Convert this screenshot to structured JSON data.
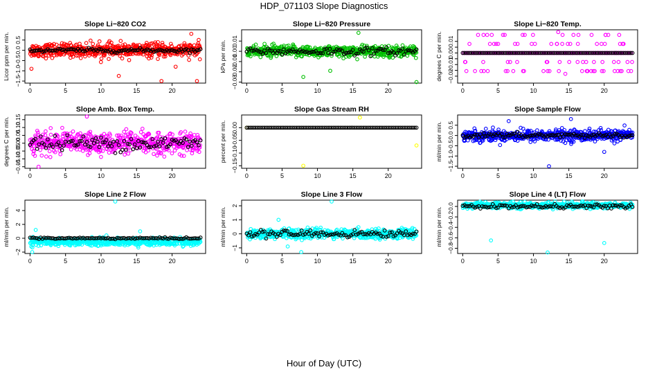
{
  "page_title": "HDP_071103  Slope Diagnostics",
  "x_axis_label": "Hour of Day (UTC)",
  "chart_data": [
    {
      "type": "scatter",
      "title": "Slope Li−820 CO2",
      "ylabel": "Licor ppm per min.",
      "color": "#ff0000",
      "xlim": [
        0,
        24
      ],
      "ylim": [
        -1.6,
        1.0
      ],
      "xticks": [
        0,
        5,
        10,
        15,
        20
      ],
      "yticks": [
        -1.5,
        -1.0,
        -0.5,
        0.0,
        0.5
      ],
      "ytick_labels": [
        "−1.5",
        "−1.0",
        "−0.5",
        "0.0",
        "0.5"
      ],
      "spread": 0.3,
      "center": 0.0,
      "outliers": [
        [
          0.2,
          -0.9
        ],
        [
          12.5,
          -1.25
        ],
        [
          18.5,
          -1.5
        ],
        [
          23.5,
          -1.5
        ],
        [
          22.7,
          0.8
        ],
        [
          20.5,
          -0.8
        ]
      ],
      "black_center": 0.0,
      "black_spread": 0.08
    },
    {
      "type": "scatter",
      "title": "Slope Li−820 Pressure",
      "ylabel": "kPa per min.",
      "color": "#00c000",
      "xlim": [
        0,
        24
      ],
      "ylim": [
        -0.031,
        0.021
      ],
      "xticks": [
        0,
        5,
        10,
        15,
        20
      ],
      "yticks": [
        -0.03,
        -0.02,
        -0.01,
        0.0,
        0.01
      ],
      "ytick_labels": [
        "−0.03",
        "−0.02",
        "−0.01",
        "0.00",
        "0.01"
      ],
      "spread": 0.005,
      "center": 0.0,
      "outliers": [
        [
          8.0,
          -0.025
        ],
        [
          24,
          -0.03
        ],
        [
          15.8,
          0.018
        ],
        [
          11.8,
          -0.019
        ]
      ],
      "black_center": 0.0,
      "black_spread": 0.003
    },
    {
      "type": "scatter",
      "title": "Slope Li−820 Temp.",
      "ylabel": "degrees C per min.",
      "color": "#ff00ff",
      "xlim": [
        0,
        24
      ],
      "ylim": [
        -0.026,
        0.02
      ],
      "xticks": [
        0,
        5,
        10,
        15,
        20
      ],
      "yticks": [
        -0.02,
        -0.01,
        0.0,
        0.01
      ],
      "ytick_labels": [
        "−0.02",
        "−0.01",
        "0.00",
        "0.01"
      ],
      "extra_yticks": [
        -0.015,
        -0.005,
        0.005
      ],
      "levels": [
        -0.0156,
        -0.0078,
        0.0,
        0.0078,
        0.0156
      ],
      "outliers": [
        [
          13.5,
          0.018
        ],
        [
          14.5,
          -0.018
        ]
      ],
      "black_center": 0.0,
      "black_spread": 0.0
    },
    {
      "type": "scatter",
      "title": "Slope Amb. Box Temp.",
      "ylabel": "degrees C per min.",
      "color": "#ff00ff",
      "xlim": [
        0,
        24
      ],
      "ylim": [
        -0.16,
        0.18
      ],
      "xticks": [
        0,
        5,
        10,
        15,
        20
      ],
      "yticks": [
        -0.15,
        -0.1,
        -0.05,
        0.0,
        0.05,
        0.1,
        0.15
      ],
      "ytick_labels": [
        "−0.15",
        "−0.10",
        "−0.05",
        "0.00",
        "0.05",
        "0.10",
        "0.15"
      ],
      "spread": 0.06,
      "center": 0.0,
      "outliers": [
        [
          1.2,
          -0.15
        ],
        [
          8.0,
          0.17
        ]
      ],
      "black_center": 0.0,
      "black_spread": 0.04
    },
    {
      "type": "scatter",
      "title": "Slope Gas Stream RH",
      "ylabel": "percent per min.",
      "color": "#ffff00",
      "xlim": [
        0,
        24
      ],
      "ylim": [
        -0.16,
        0.05
      ],
      "xticks": [
        0,
        5,
        10,
        15,
        20
      ],
      "yticks": [
        -0.15,
        -0.1,
        -0.05,
        0.0
      ],
      "ytick_labels": [
        "−0.15",
        "−0.10",
        "−0.05",
        "0.00"
      ],
      "flat": true,
      "center": 0.0,
      "outliers": [
        [
          16.0,
          0.04
        ],
        [
          24,
          -0.07
        ],
        [
          0.0,
          0.0
        ],
        [
          8.0,
          -0.15
        ]
      ],
      "black_center": 0.0,
      "black_spread": 0.0
    },
    {
      "type": "scatter",
      "title": "Slope Sample Flow",
      "ylabel": "ml/min per min.",
      "color": "#0000ff",
      "xlim": [
        0,
        24
      ],
      "ylim": [
        -1.6,
        1.0
      ],
      "xticks": [
        0,
        5,
        10,
        15,
        20
      ],
      "yticks": [
        -1.5,
        -1.0,
        -0.5,
        0.0,
        0.5
      ],
      "ytick_labels": [
        "−1.5",
        "−1.0",
        "−0.5",
        "0.0",
        "0.5"
      ],
      "spread": 0.25,
      "center": 0.0,
      "outliers": [
        [
          12.2,
          -1.5
        ],
        [
          15.3,
          0.8
        ],
        [
          20.0,
          -0.8
        ],
        [
          6.5,
          0.7
        ]
      ],
      "black_center": 0.0,
      "black_spread": 0.1
    },
    {
      "type": "scatter",
      "title": "Slope Line 2 Flow",
      "ylabel": "ml/min per min.",
      "color": "#00ffff",
      "xlim": [
        0,
        24
      ],
      "ylim": [
        -2.2,
        5.5
      ],
      "xticks": [
        0,
        5,
        10,
        15,
        20
      ],
      "yticks": [
        -2,
        0,
        2,
        4
      ],
      "ytick_labels": [
        "−2",
        "0",
        "2",
        "4"
      ],
      "spread": 0.5,
      "center": -0.5,
      "outliers": [
        [
          12.0,
          5.3
        ],
        [
          0.8,
          1.2
        ],
        [
          15.5,
          1.0
        ],
        [
          0.3,
          -2.0
        ]
      ],
      "black_center": 0.0,
      "black_spread": 0.1
    },
    {
      "type": "scatter",
      "title": "Slope Line 3 Flow",
      "ylabel": "ml/min per min.",
      "color": "#00ffff",
      "xlim": [
        0,
        24
      ],
      "ylim": [
        -1.4,
        2.4
      ],
      "xticks": [
        0,
        5,
        10,
        15,
        20
      ],
      "yticks": [
        -1,
        0,
        1,
        2
      ],
      "ytick_labels": [
        "−1",
        "0",
        "1",
        "2"
      ],
      "spread": 0.3,
      "center": 0.0,
      "outliers": [
        [
          12.0,
          2.3
        ],
        [
          7.7,
          -1.3
        ],
        [
          4.5,
          1.0
        ],
        [
          5.8,
          -0.9
        ]
      ],
      "black_center": 0.0,
      "black_spread": 0.2
    },
    {
      "type": "scatter",
      "title": "Slope Line 4 (LT) Flow",
      "ylabel": "ml/min per min.",
      "color": "#00ffff",
      "xlim": [
        0,
        24
      ],
      "ylim": [
        -0.9,
        0.12
      ],
      "xticks": [
        0,
        5,
        10,
        15,
        20
      ],
      "yticks": [
        -0.8,
        -0.6,
        -0.4,
        -0.2,
        0.0
      ],
      "ytick_labels": [
        "−0.8",
        "−0.6",
        "−0.4",
        "−0.2",
        "0.0"
      ],
      "spread": 0.05,
      "center": 0.02,
      "outliers": [
        [
          4.0,
          -0.65
        ],
        [
          12.0,
          -0.88
        ],
        [
          20.0,
          -0.7
        ]
      ],
      "black_center": 0.0,
      "black_spread": 0.03
    }
  ]
}
